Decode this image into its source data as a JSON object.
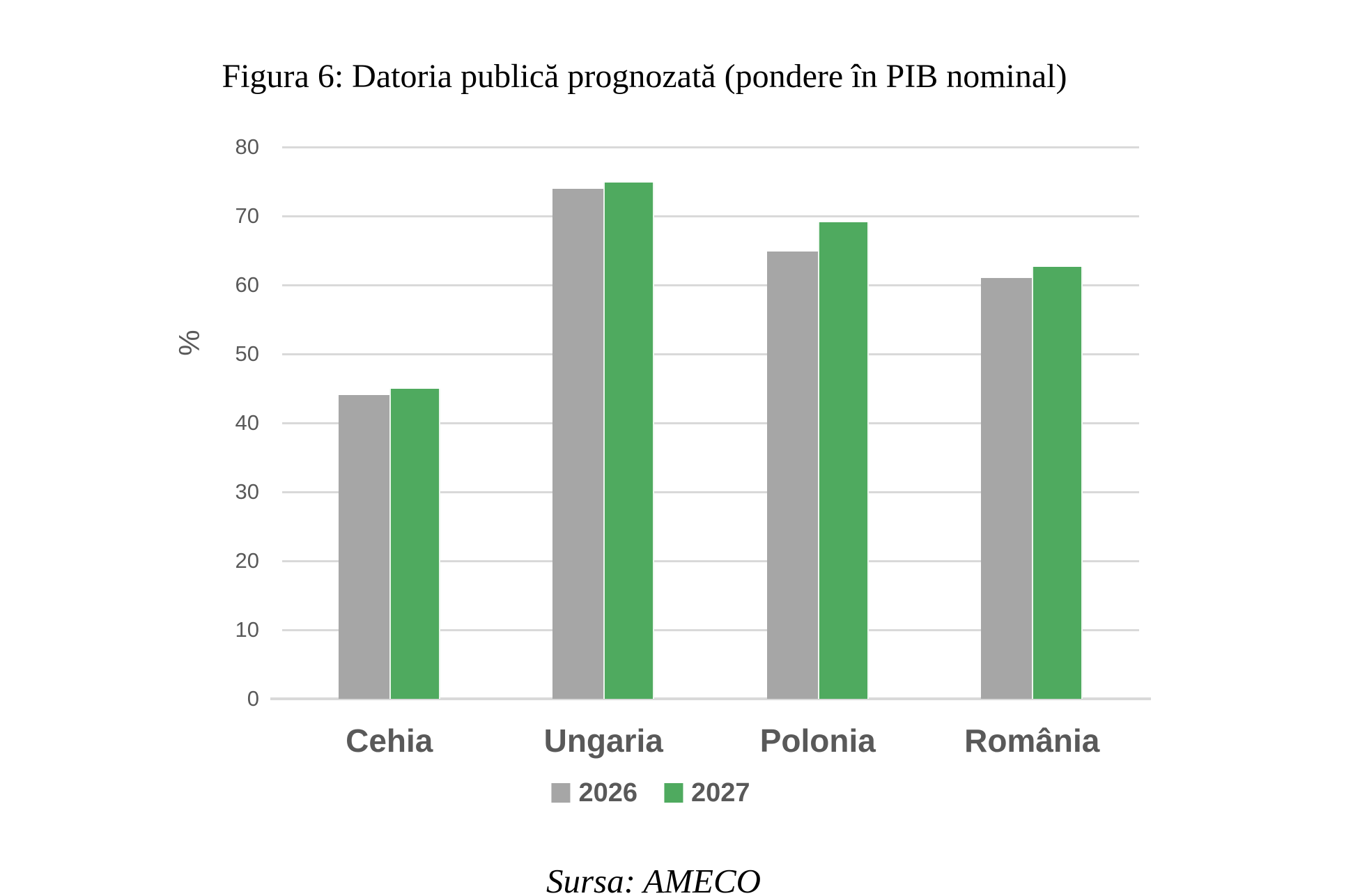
{
  "title": "Figura 6: Datoria publică prognozată (pondere în PIB nominal)",
  "source_note": "Sursa: AMECO",
  "chart_data": {
    "type": "bar",
    "title": "Figura 6: Datoria publică prognozată (pondere în PIB nominal)",
    "categories": [
      "Cehia",
      "Ungaria",
      "Polonia",
      "România"
    ],
    "series": [
      {
        "name": "2026",
        "color": "#A6A6A6",
        "values": [
          44.0,
          73.9,
          64.9,
          61.0
        ]
      },
      {
        "name": "2027",
        "color": "#4FAA5F",
        "values": [
          45.0,
          74.8,
          69.1,
          62.6
        ]
      }
    ],
    "xlabel": "",
    "ylabel": "%",
    "ylim": [
      0,
      80
    ],
    "ytick_step": 10,
    "yticks": [
      0,
      10,
      20,
      30,
      40,
      50,
      60,
      70,
      80
    ],
    "grid": true,
    "legend_position": "bottom",
    "annotation": "Sursa: AMECO",
    "colors": {
      "gridline": "#D9D9D9",
      "axis_line": "#D9D9D9",
      "tick_label": "#595959",
      "category_label": "#595959",
      "legend_label": "#595959",
      "title": "#000000",
      "source": "#000000",
      "background": "#FFFFFF"
    }
  }
}
